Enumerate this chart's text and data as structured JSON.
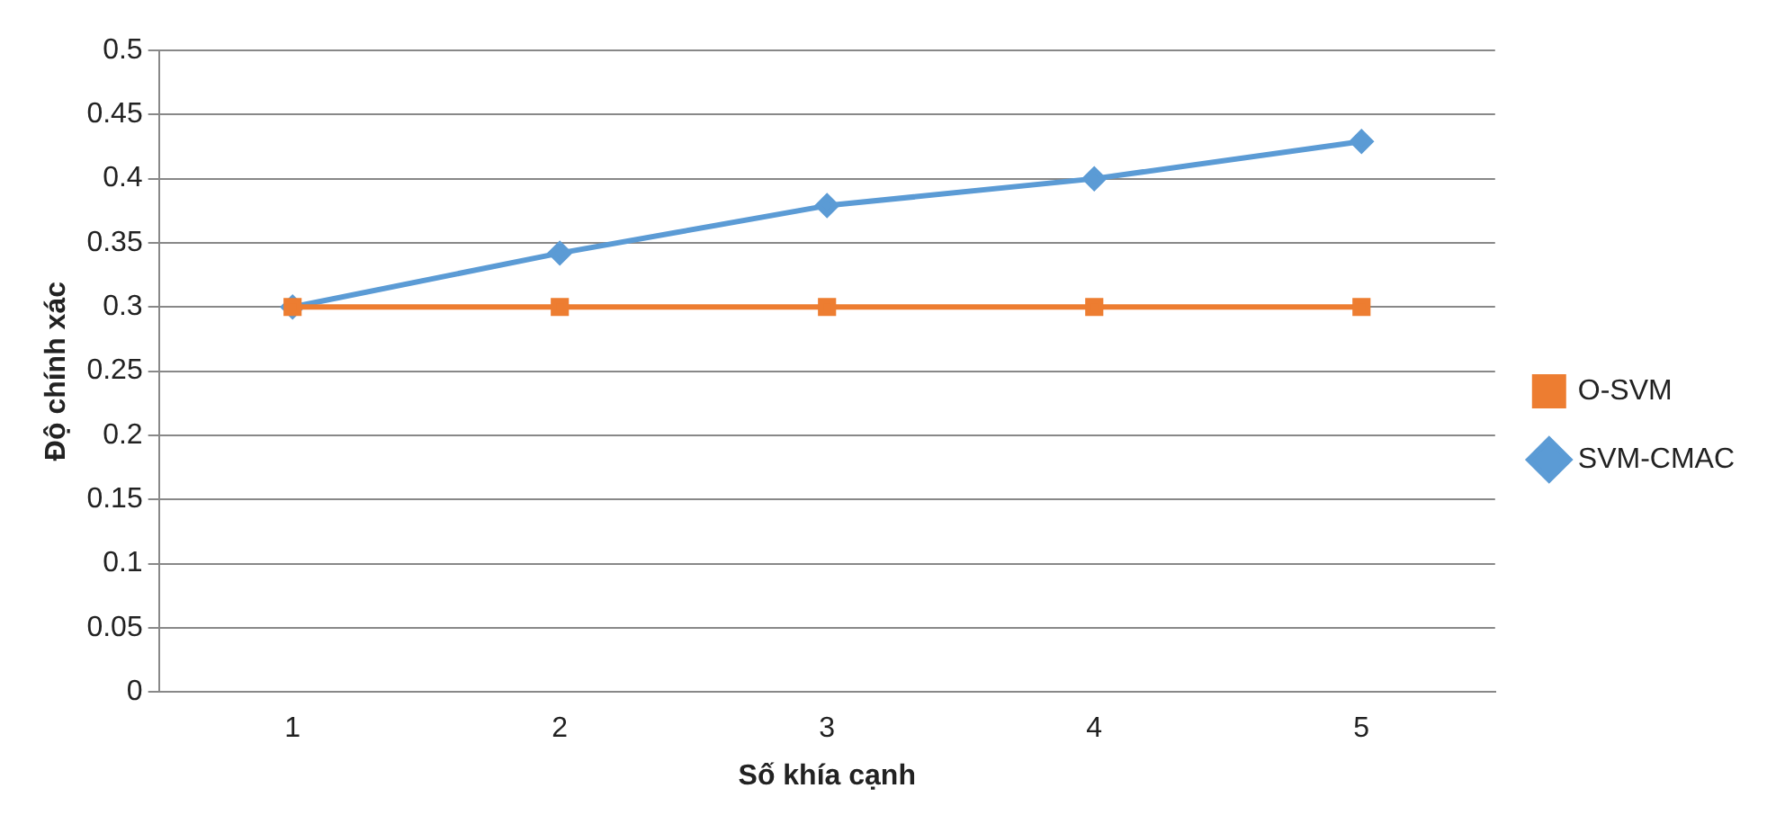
{
  "chart_data": {
    "type": "line",
    "xlabel": "Số khía cạnh",
    "ylabel": "Độ chính xác",
    "categories": [
      "1",
      "2",
      "3",
      "4",
      "5"
    ],
    "series": [
      {
        "name": "SVM-CMAC",
        "color": "#5b9bd5",
        "marker": "diamond",
        "values": [
          0.3,
          0.342,
          0.379,
          0.4,
          0.429
        ]
      },
      {
        "name": "O-SVM",
        "color": "#ed7d31",
        "marker": "square",
        "values": [
          0.3,
          0.3,
          0.3,
          0.3,
          0.3
        ]
      }
    ],
    "ylim": [
      0,
      0.5
    ],
    "yticks": [
      0,
      0.05,
      0.1,
      0.15,
      0.2,
      0.25,
      0.3,
      0.35,
      0.4,
      0.45,
      0.5
    ],
    "grid": "y",
    "legend": "right",
    "line_style": "solid"
  }
}
